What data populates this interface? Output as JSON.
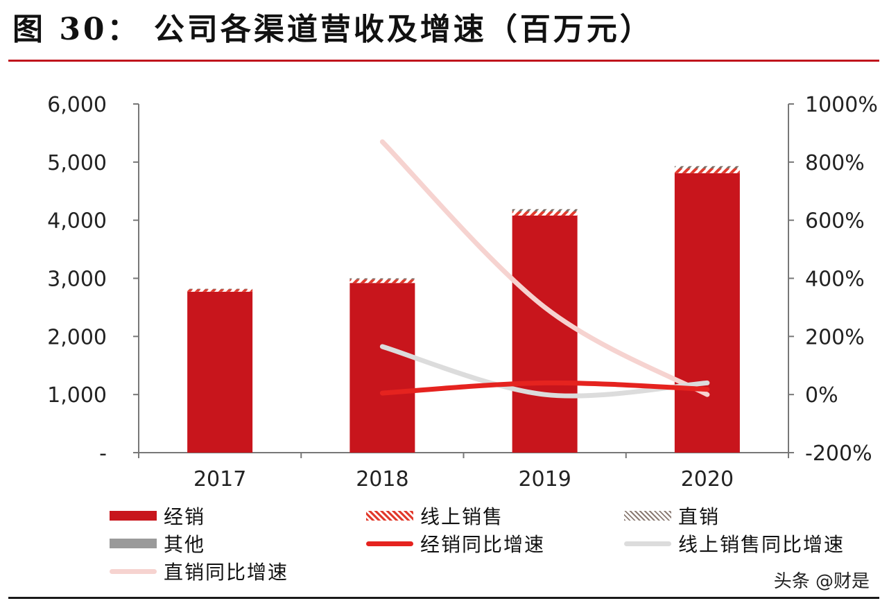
{
  "figure": {
    "title": "图 30： 公司各渠道营收及增速（百万元）",
    "watermark": "头条 @财是"
  },
  "colors": {
    "dealer": "#c8151c",
    "online": "#e23a2c",
    "direct": "#8a7a72",
    "other": "#9a9a9a",
    "dealer_growth": "#e5231f",
    "online_growth": "#dcdcdc",
    "direct_growth": "#f6d3d0",
    "rule": "#c0141c"
  },
  "legend": [
    {
      "key": "dealer",
      "label": "经销",
      "kind": "bar"
    },
    {
      "key": "online",
      "label": "线上销售",
      "kind": "hatch"
    },
    {
      "key": "direct",
      "label": "直销",
      "kind": "hatch-dark"
    },
    {
      "key": "other",
      "label": "其他",
      "kind": "bar-gray"
    },
    {
      "key": "dealer_growth",
      "label": "经销同比增速",
      "kind": "line"
    },
    {
      "key": "online_growth",
      "label": "线上销售同比增速",
      "kind": "line"
    },
    {
      "key": "direct_growth",
      "label": "直销同比增速",
      "kind": "line"
    }
  ],
  "chart_data": {
    "type": "bar",
    "categories": [
      "2017",
      "2018",
      "2019",
      "2020"
    ],
    "y_left": {
      "ticks": [
        "-",
        "1,000",
        "2,000",
        "3,000",
        "4,000",
        "5,000",
        "6,000"
      ],
      "lim": [
        0,
        6000
      ]
    },
    "y_right": {
      "ticks": [
        "-200%",
        "0%",
        "200%",
        "400%",
        "600%",
        "800%",
        "1000%"
      ],
      "lim": [
        -200,
        1000
      ]
    },
    "series": [
      {
        "name": "经销",
        "axis": "left",
        "kind": "bar",
        "values": [
          2770,
          2920,
          4080,
          4810
        ]
      },
      {
        "name": "线上销售",
        "axis": "left",
        "kind": "bar",
        "values": [
          40,
          60,
          70,
          80
        ]
      },
      {
        "name": "直销",
        "axis": "left",
        "kind": "bar",
        "values": [
          10,
          20,
          40,
          40
        ]
      },
      {
        "name": "其他",
        "axis": "left",
        "kind": "bar",
        "values": [
          0,
          0,
          0,
          0
        ]
      },
      {
        "name": "经销同比增速",
        "axis": "right",
        "kind": "line",
        "values": [
          null,
          5,
          40,
          18
        ]
      },
      {
        "name": "线上销售同比增速",
        "axis": "right",
        "kind": "line",
        "values": [
          null,
          165,
          0,
          40
        ]
      },
      {
        "name": "直销同比增速",
        "axis": "right",
        "kind": "line",
        "values": [
          null,
          870,
          300,
          0
        ]
      }
    ],
    "grid": false,
    "legend_position": "bottom"
  }
}
